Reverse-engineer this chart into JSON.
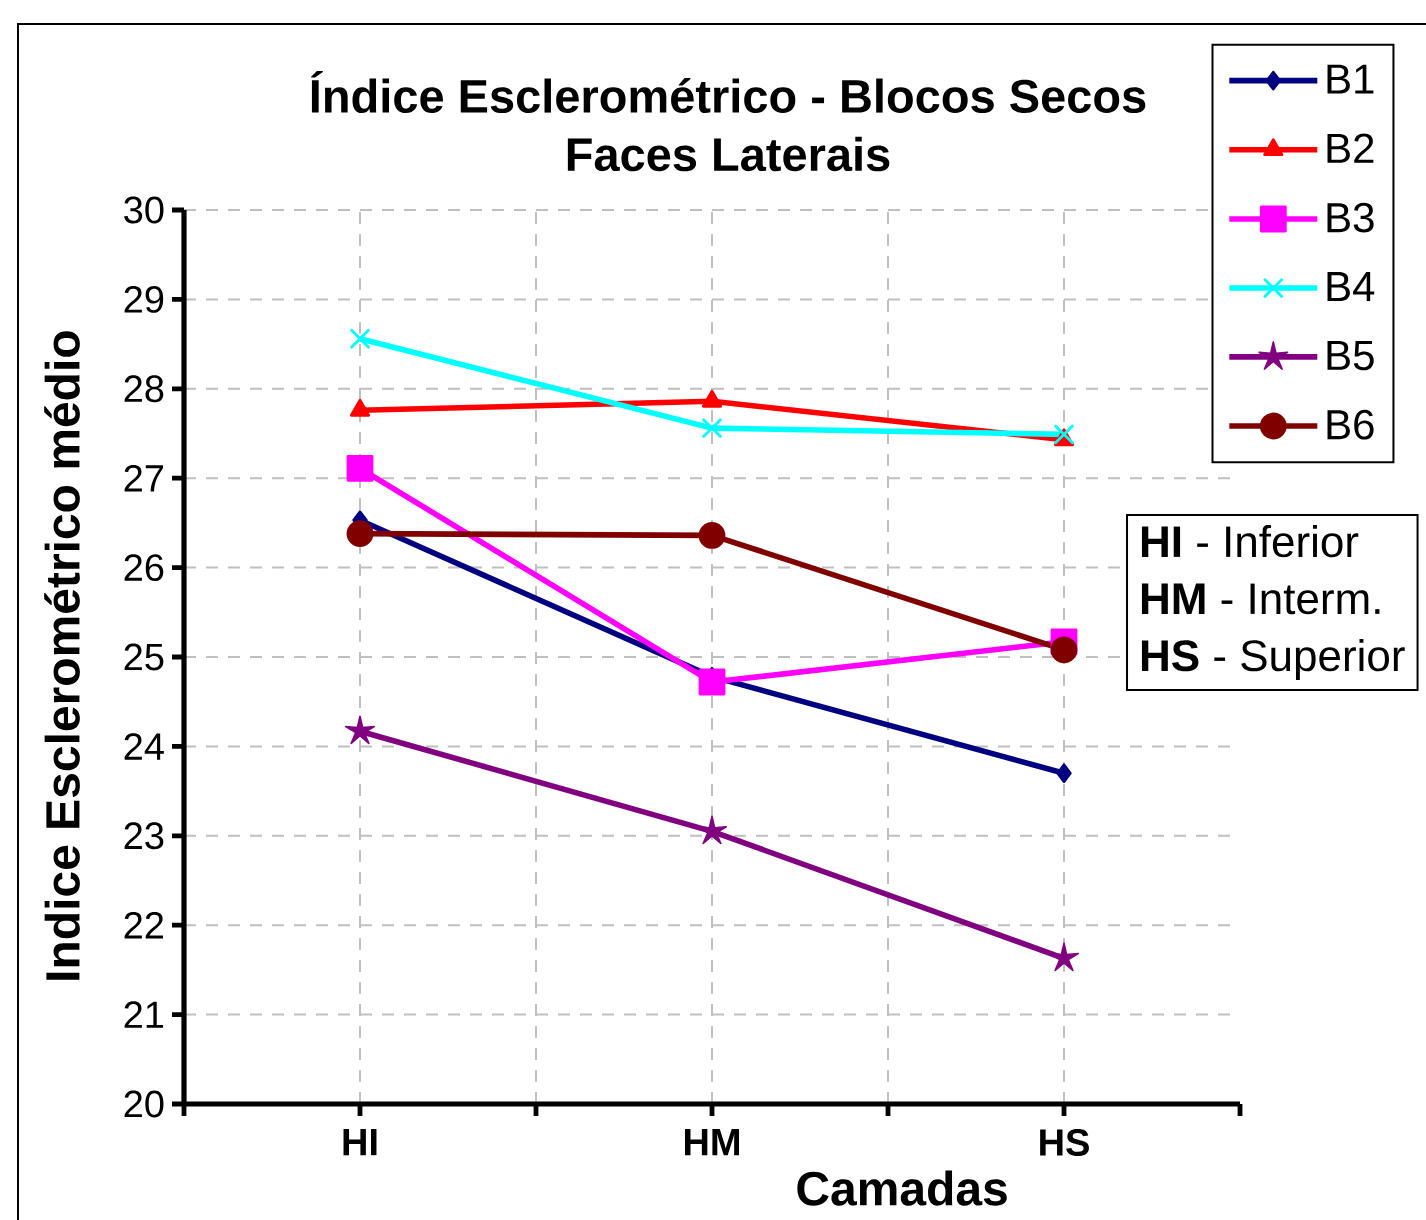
{
  "chart_data": {
    "type": "line",
    "title": "Índice Esclerométrico - Blocos Secos",
    "subtitle": "Faces Laterais",
    "xlabel": "Camadas",
    "ylabel": "Indice Esclerométrico médio",
    "categories": [
      "HI",
      "HM",
      "HS"
    ],
    "series": [
      {
        "name": "B1",
        "color": "#000080",
        "marker": "diamond",
        "values": [
          26.53,
          24.78,
          23.7
        ]
      },
      {
        "name": "B2",
        "color": "#ff0000",
        "marker": "triangle",
        "values": [
          27.76,
          27.86,
          27.43
        ]
      },
      {
        "name": "B3",
        "color": "#ff00ff",
        "marker": "square",
        "values": [
          27.11,
          24.72,
          25.17
        ]
      },
      {
        "name": "B4",
        "color": "#00ffff",
        "marker": "cross",
        "values": [
          28.56,
          27.56,
          27.49
        ]
      },
      {
        "name": "B5",
        "color": "#800080",
        "marker": "star",
        "values": [
          24.17,
          23.05,
          21.63
        ]
      },
      {
        "name": "B6",
        "color": "#800000",
        "marker": "circle",
        "values": [
          26.38,
          26.36,
          25.08
        ]
      }
    ],
    "ylim": [
      20,
      30
    ],
    "yticks": [
      20,
      21,
      22,
      23,
      24,
      25,
      26,
      27,
      28,
      29,
      30
    ],
    "grid": true,
    "legend": "top right",
    "line_style": "solid",
    "annotations": [
      "**HI** - Inferior",
      "**HM** - Interm.",
      "**HS** - Superior"
    ]
  }
}
